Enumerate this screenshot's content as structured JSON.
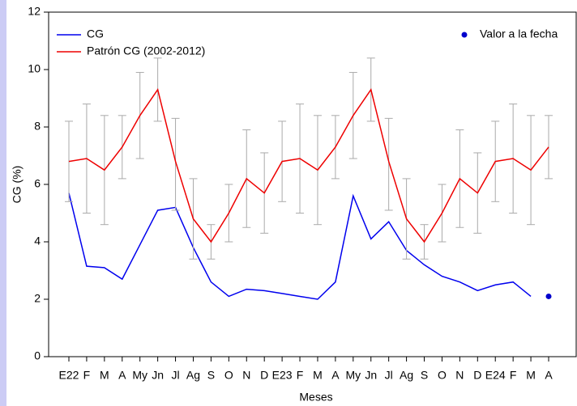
{
  "chart_data": {
    "type": "line",
    "xlabel": "Meses",
    "ylabel": "CG (%)",
    "categories": [
      "E22",
      "F",
      "M",
      "A",
      "My",
      "Jn",
      "Jl",
      "Ag",
      "S",
      "O",
      "N",
      "D",
      "E23",
      "F",
      "M",
      "A",
      "My",
      "Jn",
      "Jl",
      "Ag",
      "S",
      "O",
      "N",
      "D",
      "E24",
      "F",
      "M",
      "A"
    ],
    "ylim": [
      0,
      12
    ],
    "yticks": [
      0,
      2,
      4,
      6,
      8,
      10,
      12
    ],
    "series": [
      {
        "name": "CG",
        "color": "#0000ee",
        "kind": "line",
        "values": [
          5.7,
          3.15,
          3.1,
          2.7,
          3.9,
          5.1,
          5.2,
          3.8,
          2.6,
          2.1,
          2.35,
          2.3,
          2.2,
          2.1,
          2.0,
          2.6,
          5.6,
          4.1,
          4.7,
          3.7,
          3.2,
          2.8,
          2.6,
          2.3,
          2.5,
          2.6,
          2.1,
          null
        ]
      },
      {
        "name": "Patrón CG (2002-2012)",
        "color": "#ee0000",
        "kind": "line",
        "error_color": "#aaaaaa",
        "values": [
          6.8,
          6.9,
          6.5,
          7.3,
          8.4,
          9.3,
          6.8,
          4.8,
          4.0,
          5.0,
          6.2,
          5.7,
          6.8,
          6.9,
          6.5,
          7.3,
          8.4,
          9.3,
          6.8,
          4.8,
          4.0,
          5.0,
          6.2,
          5.7,
          6.8,
          6.9,
          6.5,
          7.3
        ],
        "error_high": [
          8.2,
          8.8,
          8.4,
          8.4,
          9.9,
          10.4,
          8.3,
          6.2,
          4.6,
          6.0,
          7.9,
          7.1,
          8.2,
          8.8,
          8.4,
          8.4,
          9.9,
          10.4,
          8.3,
          6.2,
          4.6,
          6.0,
          7.9,
          7.1,
          8.2,
          8.8,
          8.4,
          8.4
        ],
        "error_low": [
          5.4,
          5.0,
          4.6,
          6.2,
          6.9,
          8.2,
          5.1,
          3.4,
          3.4,
          4.0,
          4.5,
          4.3,
          5.4,
          5.0,
          4.6,
          6.2,
          6.9,
          8.2,
          5.1,
          3.4,
          3.4,
          4.0,
          4.5,
          4.3,
          5.4,
          5.0,
          4.6,
          6.2
        ]
      },
      {
        "name": "Valor a la fecha",
        "color": "#0000cc",
        "kind": "point",
        "values": [
          null,
          null,
          null,
          null,
          null,
          null,
          null,
          null,
          null,
          null,
          null,
          null,
          null,
          null,
          null,
          null,
          null,
          null,
          null,
          null,
          null,
          null,
          null,
          null,
          null,
          null,
          null,
          2.1
        ]
      }
    ]
  }
}
